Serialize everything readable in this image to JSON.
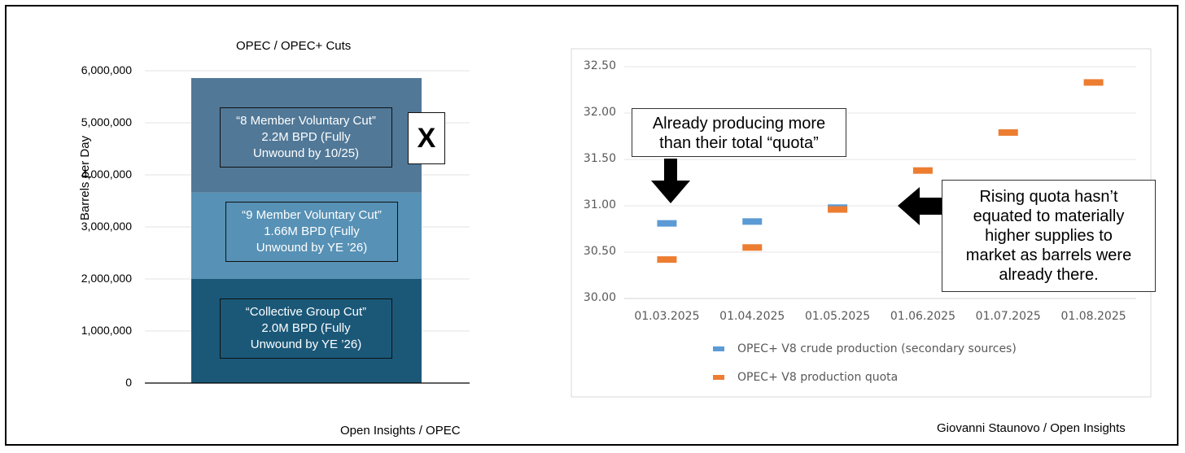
{
  "colors": {
    "seg_bottom": "#1B5878",
    "seg_middle": "#5791B5",
    "seg_top": "#517897",
    "production_marker": "#5B9BD5",
    "quota_marker": "#ED7D31"
  },
  "left_chart": {
    "title": "OPEC / OPEC+ Cuts",
    "ylabel": "Barrels per Day",
    "source": "Open Insights / OPEC",
    "x_mark": "X",
    "boxes": [
      {
        "line1": "“8 Member Voluntary Cut”",
        "line2": "2.2M BPD (Fully",
        "line3": "Unwound by 10/25)"
      },
      {
        "line1": "“9 Member Voluntary Cut”",
        "line2": "1.66M BPD (Fully",
        "line3": "Unwound by YE ’26)"
      },
      {
        "line1": "“Collective Group Cut”",
        "line2": "2.0M BPD (Fully",
        "line3": "Unwound by YE ’26)"
      }
    ]
  },
  "right_chart": {
    "source": "Giovanni Staunovo / Open Insights",
    "callout_left": {
      "line1": "Already producing more",
      "line2": "than their total “quota”"
    },
    "callout_right": {
      "line1": "Rising quota hasn’t",
      "line2": "equated to materially",
      "line3": "higher supplies to",
      "line4": "market as barrels were",
      "line5": "already there."
    }
  },
  "chart_data": [
    {
      "type": "bar",
      "stacked": true,
      "title": "OPEC / OPEC+ Cuts",
      "ylabel": "Barrels per Day",
      "ylim": [
        0,
        6000000
      ],
      "yticks": [
        "0",
        "1,000,000",
        "2,000,000",
        "3,000,000",
        "4,000,000",
        "5,000,000",
        "6,000,000"
      ],
      "series": [
        {
          "name": "“Collective Group Cut”",
          "values": [
            2000000
          ]
        },
        {
          "name": "“9 Member Voluntary Cut”",
          "values": [
            1660000
          ]
        },
        {
          "name": "“8 Member Voluntary Cut”",
          "values": [
            2200000
          ]
        }
      ],
      "grid": true
    },
    {
      "type": "scatter",
      "categories": [
        "01.03.2025",
        "01.04.2025",
        "01.05.2025",
        "01.06.2025",
        "01.07.2025",
        "01.08.2025"
      ],
      "ylim": [
        30.0,
        32.5
      ],
      "yticks": [
        "30.00",
        "30.50",
        "31.00",
        "31.50",
        "32.00",
        "32.50"
      ],
      "series": [
        {
          "name": "OPEC+ V8 crude production (secondary sources)",
          "values": [
            30.81,
            30.83,
            30.98,
            null,
            null,
            null
          ]
        },
        {
          "name": "OPEC+ V8 production quota",
          "values": [
            30.42,
            30.55,
            30.96,
            31.38,
            31.79,
            32.33
          ]
        }
      ],
      "legend": "bottom",
      "grid": true
    }
  ]
}
